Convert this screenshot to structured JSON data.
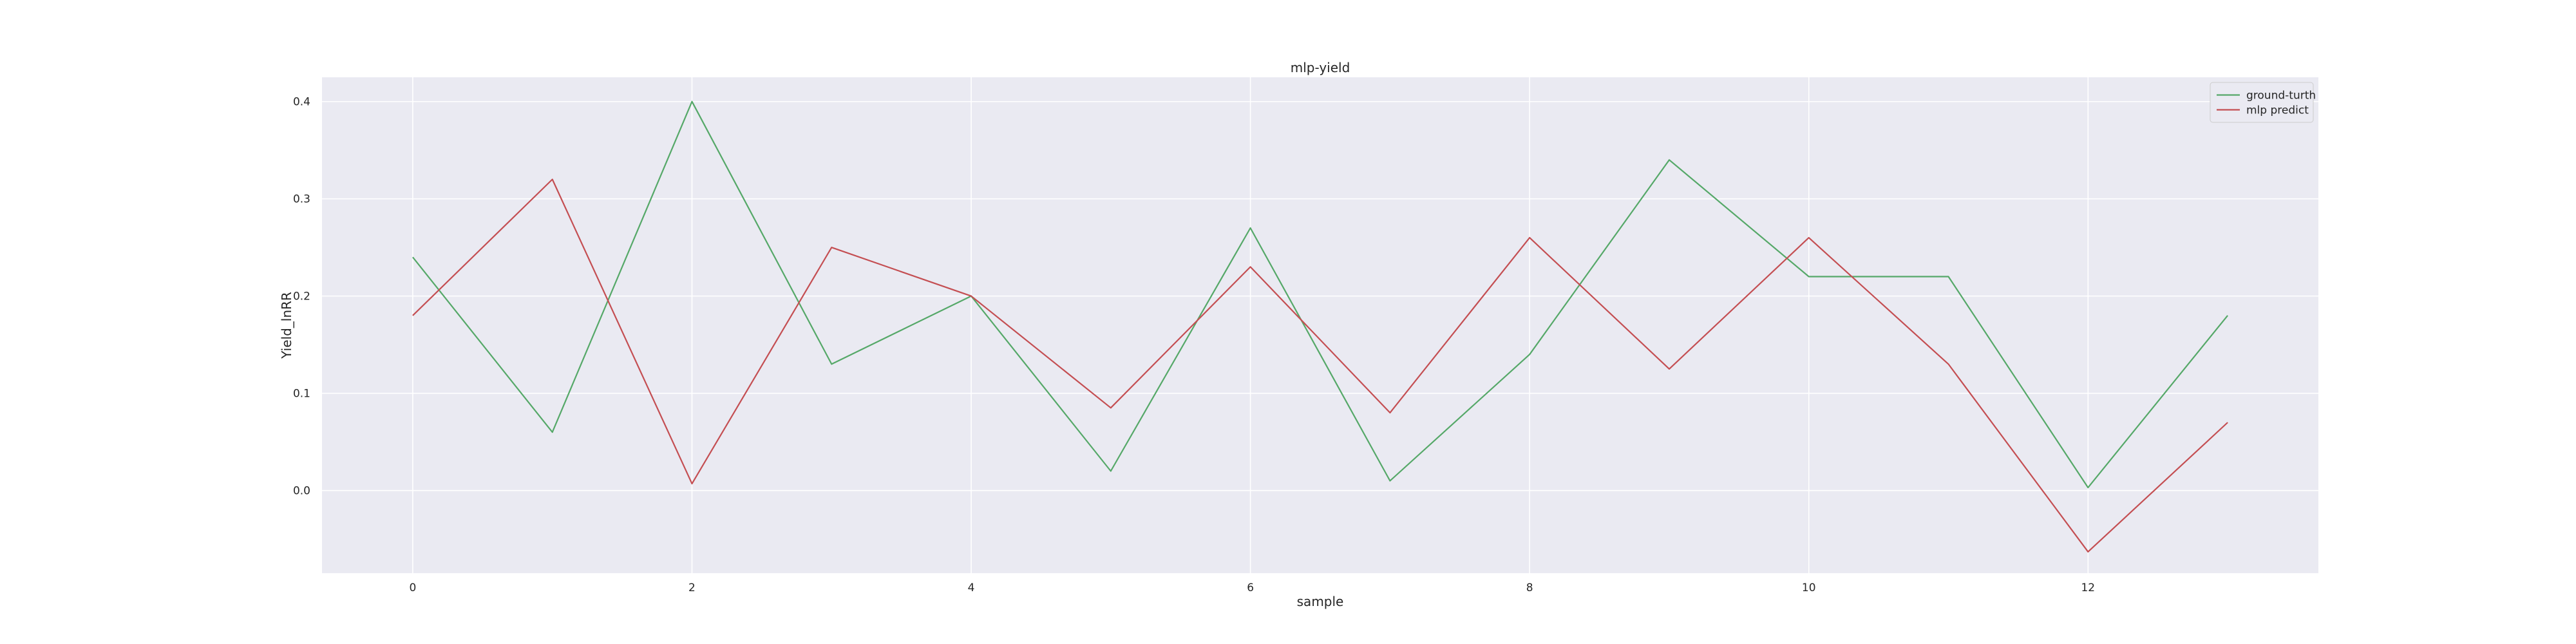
{
  "chart_data": {
    "type": "line",
    "title": "mlp-yield",
    "xlabel": "sample",
    "ylabel": "Yield_lnRR",
    "x": [
      0,
      1,
      2,
      3,
      4,
      5,
      6,
      7,
      8,
      9,
      10,
      11,
      12,
      13
    ],
    "xlim": [
      -0.65,
      13.65
    ],
    "ylim": [
      -0.085,
      0.425
    ],
    "xticks": [
      0,
      2,
      4,
      6,
      8,
      10,
      12
    ],
    "yticks": [
      0.0,
      0.1,
      0.2,
      0.3,
      0.4
    ],
    "ytick_labels": [
      "0.0",
      "0.1",
      "0.2",
      "0.3",
      "0.4"
    ],
    "grid": true,
    "legend_position": "top-right",
    "series": [
      {
        "name": "ground-turth",
        "color": "#55a868",
        "values": [
          0.24,
          0.06,
          0.4,
          0.13,
          0.2,
          0.02,
          0.27,
          0.01,
          0.14,
          0.34,
          0.22,
          0.22,
          0.003,
          0.18
        ]
      },
      {
        "name": "mlp predict",
        "color": "#c44e52",
        "values": [
          0.18,
          0.32,
          0.007,
          0.25,
          0.2,
          0.085,
          0.23,
          0.08,
          0.26,
          0.125,
          0.26,
          0.13,
          -0.063,
          0.07
        ]
      }
    ],
    "colors": {
      "plot_background": "#eaeaf2",
      "grid": "#ffffff",
      "page_background": "#ffffff"
    }
  }
}
